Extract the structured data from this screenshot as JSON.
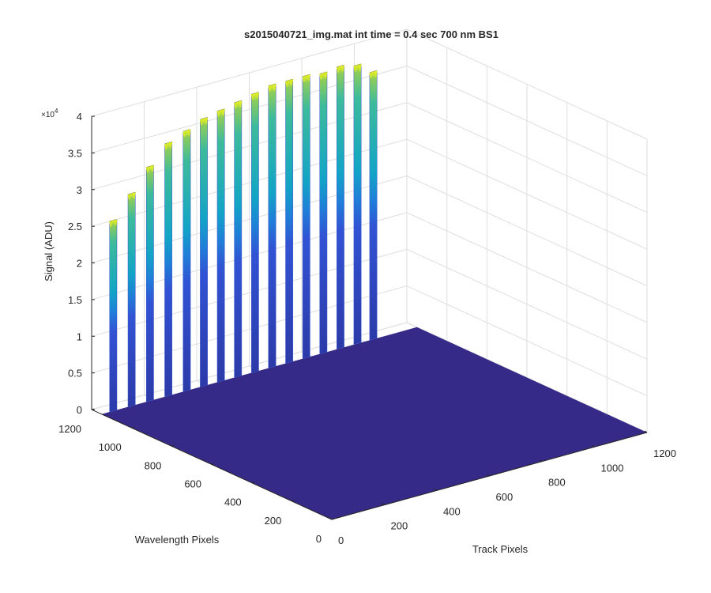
{
  "chart_data": {
    "type": "surface",
    "title": "s2015040721_img.mat int time = 0.4 sec  700 nm BS1",
    "xlabel": "Track Pixels",
    "ylabel": "Wavelength Pixels",
    "zlabel": "Signal (ADU)",
    "zscale_label": "×10",
    "zscale_exponent": "4",
    "x_ticks": [
      "0",
      "200",
      "400",
      "600",
      "800",
      "1000",
      "1200"
    ],
    "y_ticks": [
      "0",
      "200",
      "400",
      "600",
      "800",
      "1000",
      "1200"
    ],
    "z_ticks": [
      "0",
      "0.5",
      "1",
      "1.5",
      "2",
      "2.5",
      "3",
      "3.5",
      "4"
    ],
    "xlim": [
      0,
      1200
    ],
    "ylim": [
      0,
      1200
    ],
    "zlim": [
      0,
      40000
    ],
    "grid": true,
    "colormap": "parula",
    "colors": {
      "low": "#352a87",
      "mid": "#0f8fd5",
      "high": "#f9fb0e"
    },
    "track_wavelength_pixel": 1150,
    "peaks": [
      {
        "track": 30,
        "z": 26000
      },
      {
        "track": 100,
        "z": 29000
      },
      {
        "track": 170,
        "z": 32000
      },
      {
        "track": 240,
        "z": 34500
      },
      {
        "track": 310,
        "z": 35500
      },
      {
        "track": 375,
        "z": 36500
      },
      {
        "track": 440,
        "z": 37000
      },
      {
        "track": 505,
        "z": 37500
      },
      {
        "track": 570,
        "z": 38000
      },
      {
        "track": 635,
        "z": 38500
      },
      {
        "track": 700,
        "z": 38500
      },
      {
        "track": 765,
        "z": 38500
      },
      {
        "track": 830,
        "z": 38200
      },
      {
        "track": 895,
        "z": 38500
      },
      {
        "track": 960,
        "z": 38000
      },
      {
        "track": 1020,
        "z": 36500
      }
    ]
  }
}
